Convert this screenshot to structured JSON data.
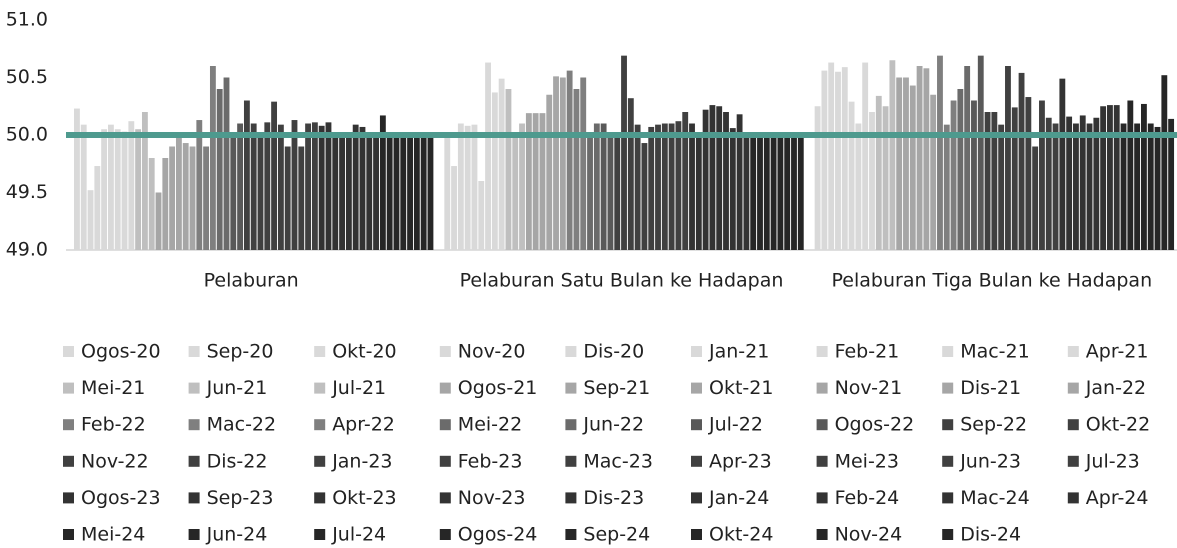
{
  "chart_data": {
    "type": "bar",
    "categories": [
      "Pelaburan",
      "Pelaburan Satu Bulan ke Hadapan",
      "Pelaburan Tiga Bulan ke Hadapan"
    ],
    "ylim": [
      49.0,
      51.0
    ],
    "yticks": [
      {
        "value": 49.0,
        "label": "49.0"
      },
      {
        "value": 49.5,
        "label": "49.5"
      },
      {
        "value": 50.0,
        "label": "50.0"
      },
      {
        "value": 50.5,
        "label": "50.5"
      },
      {
        "value": 51.0,
        "label": "51.0"
      }
    ],
    "reference_line": {
      "value": 50,
      "color": "#4e9a8e"
    },
    "series": [
      {
        "name": "Ogos-20",
        "color": "#d9d9d9",
        "values": [
          50.23,
          50.0,
          50.25
        ]
      },
      {
        "name": "Sep-20",
        "color": "#d9d9d9",
        "values": [
          50.09,
          49.73,
          50.56
        ]
      },
      {
        "name": "Okt-20",
        "color": "#d9d9d9",
        "values": [
          49.52,
          50.1,
          50.63
        ]
      },
      {
        "name": "Nov-20",
        "color": "#d9d9d9",
        "values": [
          49.73,
          50.08,
          50.55
        ]
      },
      {
        "name": "Dis-20",
        "color": "#d9d9d9",
        "values": [
          50.05,
          50.09,
          50.59
        ]
      },
      {
        "name": "Jan-21",
        "color": "#d9d9d9",
        "values": [
          50.09,
          49.6,
          50.29
        ]
      },
      {
        "name": "Feb-21",
        "color": "#d9d9d9",
        "values": [
          50.05,
          50.63,
          50.1
        ]
      },
      {
        "name": "Mac-21",
        "color": "#d9d9d9",
        "values": [
          50.03,
          50.37,
          50.63
        ]
      },
      {
        "name": "Apr-21",
        "color": "#d9d9d9",
        "values": [
          50.12,
          50.49,
          50.2
        ]
      },
      {
        "name": "Mei-21",
        "color": "#bfbfbf",
        "values": [
          50.05,
          50.4,
          50.34
        ]
      },
      {
        "name": "Jun-21",
        "color": "#bfbfbf",
        "values": [
          50.2,
          50.0,
          50.25
        ]
      },
      {
        "name": "Jul-21",
        "color": "#bfbfbf",
        "values": [
          49.8,
          50.1,
          50.65
        ]
      },
      {
        "name": "Ogos-21",
        "color": "#a6a6a6",
        "values": [
          49.5,
          50.19,
          50.5
        ]
      },
      {
        "name": "Sep-21",
        "color": "#a6a6a6",
        "values": [
          49.8,
          50.19,
          50.5
        ]
      },
      {
        "name": "Okt-21",
        "color": "#a6a6a6",
        "values": [
          49.9,
          50.19,
          50.43
        ]
      },
      {
        "name": "Nov-21",
        "color": "#a6a6a6",
        "values": [
          49.98,
          50.35,
          50.6
        ]
      },
      {
        "name": "Dis-21",
        "color": "#a6a6a6",
        "values": [
          49.93,
          50.51,
          50.58
        ]
      },
      {
        "name": "Jan-22",
        "color": "#a6a6a6",
        "values": [
          49.9,
          50.5,
          50.35
        ]
      },
      {
        "name": "Feb-22",
        "color": "#7f7f7f",
        "values": [
          50.13,
          50.56,
          50.69
        ]
      },
      {
        "name": "Mac-22",
        "color": "#7f7f7f",
        "values": [
          49.9,
          50.4,
          50.09
        ]
      },
      {
        "name": "Apr-22",
        "color": "#7f7f7f",
        "values": [
          50.6,
          50.5,
          50.3
        ]
      },
      {
        "name": "Mei-22",
        "color": "#6b6b6b",
        "values": [
          50.4,
          50.0,
          50.4
        ]
      },
      {
        "name": "Jun-22",
        "color": "#6b6b6b",
        "values": [
          50.5,
          50.1,
          50.6
        ]
      },
      {
        "name": "Jul-22",
        "color": "#595959",
        "values": [
          50.0,
          50.1,
          50.3
        ]
      },
      {
        "name": "Ogos-22",
        "color": "#595959",
        "values": [
          50.1,
          50.0,
          50.69
        ]
      },
      {
        "name": "Sep-22",
        "color": "#404040",
        "values": [
          50.3,
          50.0,
          50.2
        ]
      },
      {
        "name": "Okt-22",
        "color": "#404040",
        "values": [
          50.1,
          50.69,
          50.2
        ]
      },
      {
        "name": "Nov-22",
        "color": "#404040",
        "values": [
          50.0,
          50.32,
          50.09
        ]
      },
      {
        "name": "Dis-22",
        "color": "#404040",
        "values": [
          50.11,
          50.09,
          50.6
        ]
      },
      {
        "name": "Jan-23",
        "color": "#404040",
        "values": [
          50.29,
          49.93,
          50.24
        ]
      },
      {
        "name": "Feb-23",
        "color": "#404040",
        "values": [
          50.09,
          50.07,
          50.54
        ]
      },
      {
        "name": "Mac-23",
        "color": "#404040",
        "values": [
          49.9,
          50.09,
          50.33
        ]
      },
      {
        "name": "Apr-23",
        "color": "#404040",
        "values": [
          50.13,
          50.1,
          49.9
        ]
      },
      {
        "name": "Mei-23",
        "color": "#404040",
        "values": [
          49.9,
          50.1,
          50.3
        ]
      },
      {
        "name": "Jun-23",
        "color": "#404040",
        "values": [
          50.1,
          50.12,
          50.15
        ]
      },
      {
        "name": "Jul-23",
        "color": "#404040",
        "values": [
          50.11,
          50.2,
          50.1
        ]
      },
      {
        "name": "Ogos-23",
        "color": "#333333",
        "values": [
          50.08,
          50.1,
          50.49
        ]
      },
      {
        "name": "Sep-23",
        "color": "#333333",
        "values": [
          50.11,
          50.0,
          50.16
        ]
      },
      {
        "name": "Okt-23",
        "color": "#333333",
        "values": [
          50.02,
          50.22,
          50.1
        ]
      },
      {
        "name": "Nov-23",
        "color": "#333333",
        "values": [
          50.0,
          50.26,
          50.17
        ]
      },
      {
        "name": "Dis-23",
        "color": "#333333",
        "values": [
          50.0,
          50.25,
          50.1
        ]
      },
      {
        "name": "Jan-24",
        "color": "#333333",
        "values": [
          50.09,
          50.2,
          50.15
        ]
      },
      {
        "name": "Feb-24",
        "color": "#333333",
        "values": [
          50.07,
          50.06,
          50.25
        ]
      },
      {
        "name": "Mac-24",
        "color": "#333333",
        "values": [
          50.0,
          50.18,
          50.26
        ]
      },
      {
        "name": "Apr-24",
        "color": "#333333",
        "values": [
          50.0,
          50.0,
          50.26
        ]
      },
      {
        "name": "Mei-24",
        "color": "#262626",
        "values": [
          50.17,
          50.0,
          50.1
        ]
      },
      {
        "name": "Jun-24",
        "color": "#262626",
        "values": [
          50.0,
          50.0,
          50.3
        ]
      },
      {
        "name": "Jul-24",
        "color": "#262626",
        "values": [
          50.0,
          50.0,
          50.1
        ]
      },
      {
        "name": "Ogos-24",
        "color": "#262626",
        "values": [
          50.0,
          50.0,
          50.27
        ]
      },
      {
        "name": "Sep-24",
        "color": "#262626",
        "values": [
          50.0,
          50.0,
          50.1
        ]
      },
      {
        "name": "Okt-24",
        "color": "#262626",
        "values": [
          50.0,
          50.0,
          50.07
        ]
      },
      {
        "name": "Nov-24",
        "color": "#262626",
        "values": [
          50.0,
          50.0,
          50.52
        ]
      },
      {
        "name": "Dis-24",
        "color": "#262626",
        "values": [
          50.0,
          50.0,
          50.14
        ]
      }
    ]
  }
}
